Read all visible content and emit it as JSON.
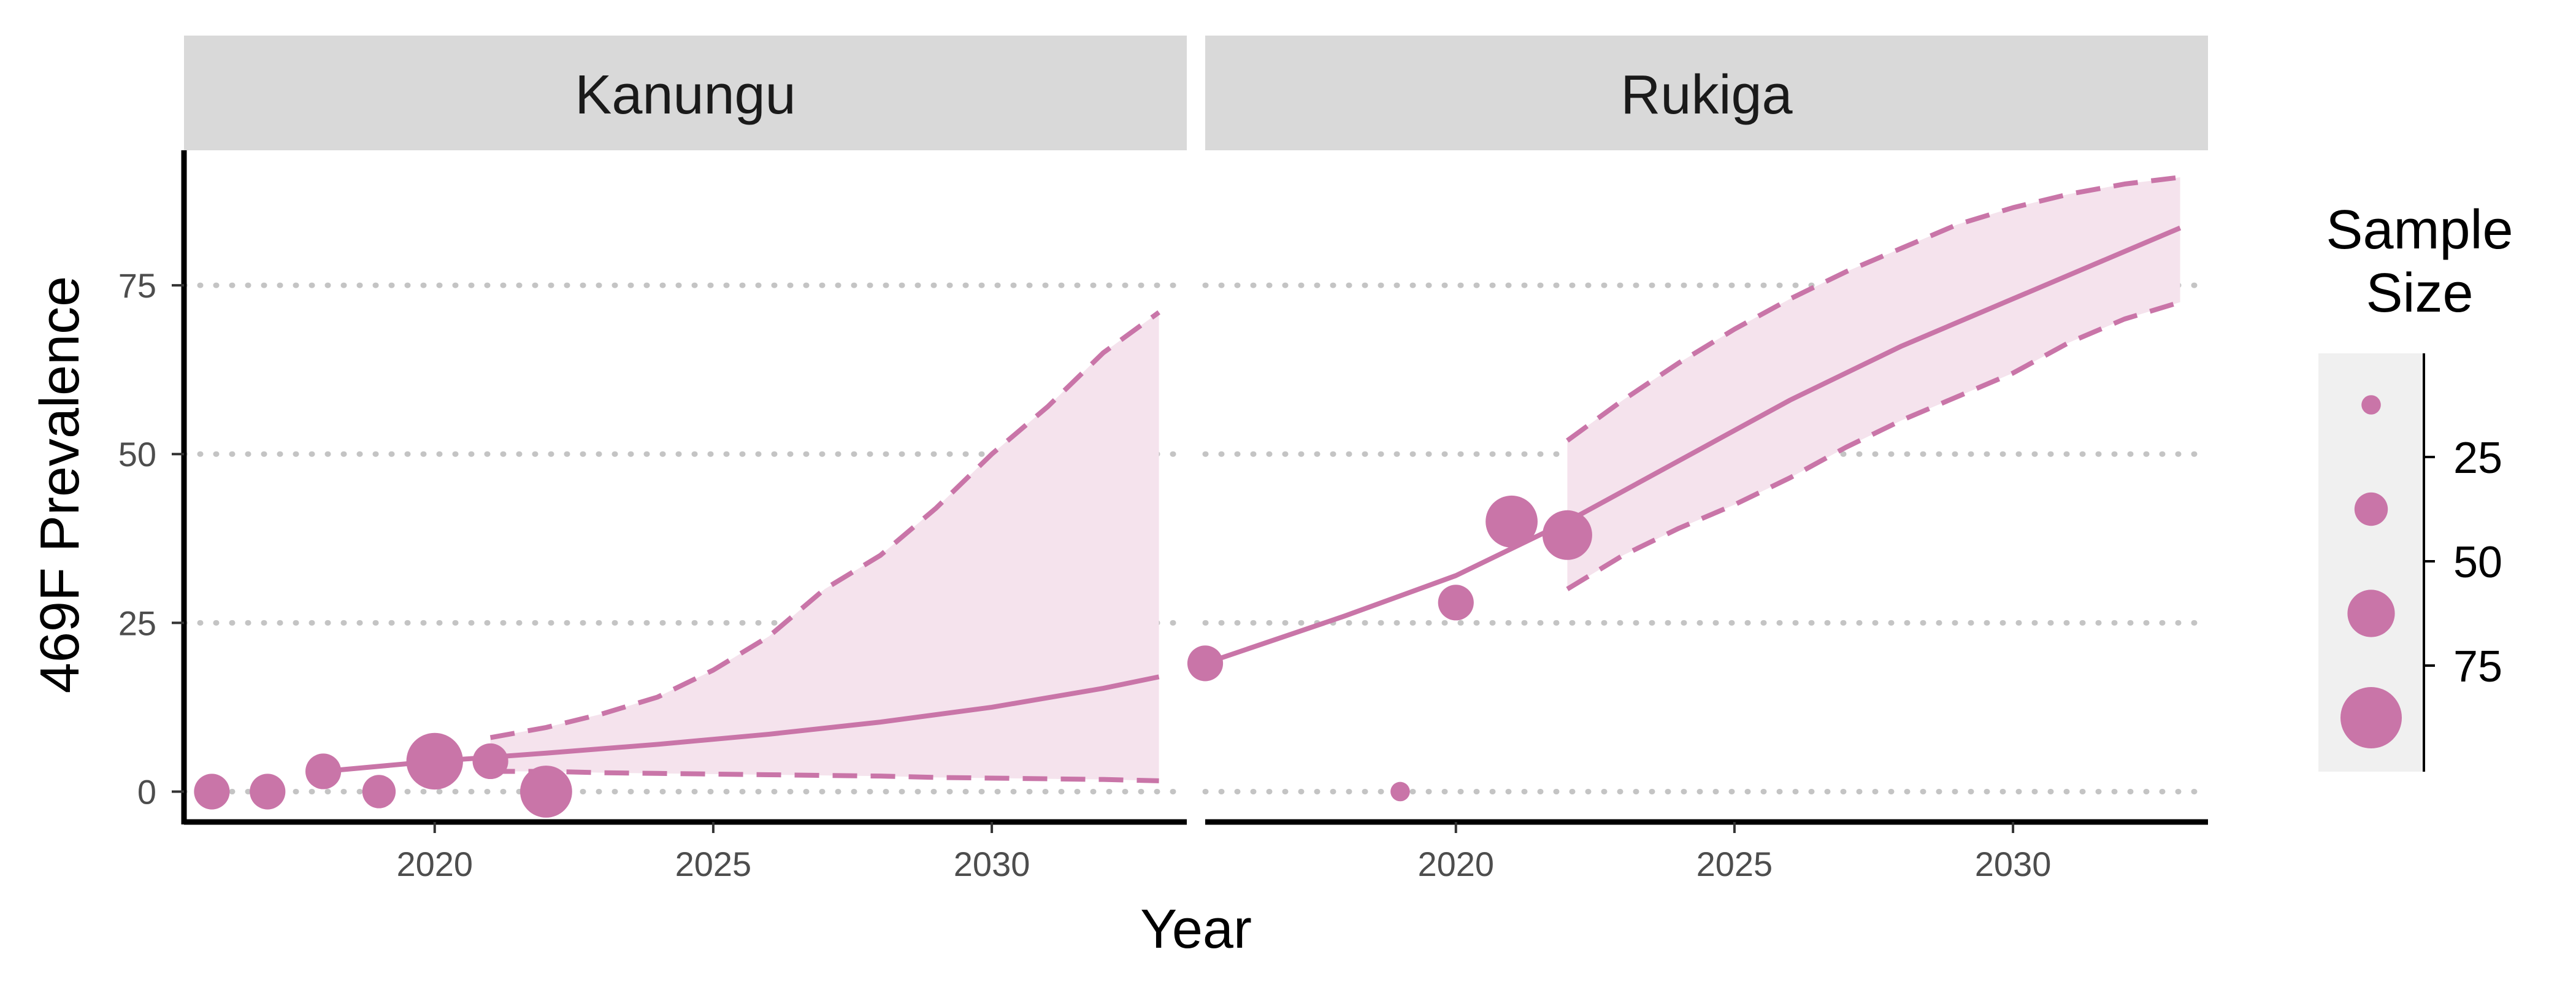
{
  "chart_data": {
    "type": "scatter",
    "xlabel": "Year",
    "ylabel": "469F Prevalence",
    "xlim": [
      2015.5,
      2033.5
    ],
    "ylim": [
      -4.5,
      95
    ],
    "x_ticks": [
      2020,
      2025,
      2030
    ],
    "y_ticks": [
      0,
      25,
      50,
      75
    ],
    "grid": "horizontal dotted at y ticks",
    "color": "#c975a8",
    "ribbon_color": "#f5e3ed",
    "legend": {
      "title_line1": "Sample",
      "title_line2": "Size",
      "placement": "right",
      "labels": [
        "25",
        "50",
        "75"
      ],
      "key_sizes": [
        10,
        40,
        70,
        100
      ]
    },
    "panels": [
      {
        "name": "Kanungu",
        "points": [
          {
            "x": 2016,
            "y": 0,
            "n": 45
          },
          {
            "x": 2017,
            "y": 0,
            "n": 45
          },
          {
            "x": 2018,
            "y": 3,
            "n": 45
          },
          {
            "x": 2019,
            "y": 0,
            "n": 40
          },
          {
            "x": 2020,
            "y": 4.5,
            "n": 90
          },
          {
            "x": 2021,
            "y": 4.5,
            "n": 45
          },
          {
            "x": 2022,
            "y": 0,
            "n": 80
          }
        ],
        "trend": {
          "x": [
            2018,
            2020,
            2022,
            2024,
            2026,
            2028,
            2030,
            2032,
            2033
          ],
          "y": [
            3,
            4.5,
            5.7,
            7,
            8.5,
            10.3,
            12.5,
            15.3,
            17
          ]
        },
        "ribbon": {
          "x": [
            2021,
            2022,
            2023,
            2024,
            2025,
            2026,
            2027,
            2028,
            2029,
            2030,
            2031,
            2032,
            2033
          ],
          "upper": [
            8,
            9.5,
            11.5,
            14,
            18,
            23,
            30,
            35,
            42,
            50,
            57,
            65,
            71
          ],
          "lower": [
            3,
            3,
            2.8,
            2.7,
            2.6,
            2.5,
            2.4,
            2.3,
            2.1,
            2,
            1.9,
            1.8,
            1.6
          ]
        }
      },
      {
        "name": "Rukiga",
        "points": [
          {
            "x": 2015.5,
            "y": 19,
            "n": 45
          },
          {
            "x": 2019,
            "y": 0,
            "n": 10
          },
          {
            "x": 2020,
            "y": 28,
            "n": 45
          },
          {
            "x": 2021,
            "y": 40,
            "n": 80
          },
          {
            "x": 2022,
            "y": 38,
            "n": 75
          }
        ],
        "trend": {
          "x": [
            2015.5,
            2018,
            2020,
            2022,
            2024,
            2026,
            2028,
            2030,
            2032,
            2033
          ],
          "y": [
            19,
            26,
            32,
            40,
            49,
            58,
            66,
            73,
            80,
            83.5
          ]
        },
        "ribbon": {
          "x": [
            2022,
            2023,
            2024,
            2025,
            2026,
            2027,
            2028,
            2029,
            2030,
            2031,
            2032,
            2033
          ],
          "upper": [
            52,
            58,
            63.5,
            68.5,
            73,
            77,
            80.5,
            84,
            86.5,
            88.5,
            90,
            91
          ],
          "lower": [
            30,
            35,
            39,
            42.5,
            46.5,
            51,
            55,
            58.5,
            62,
            66.5,
            70,
            72.5
          ]
        }
      }
    ]
  }
}
